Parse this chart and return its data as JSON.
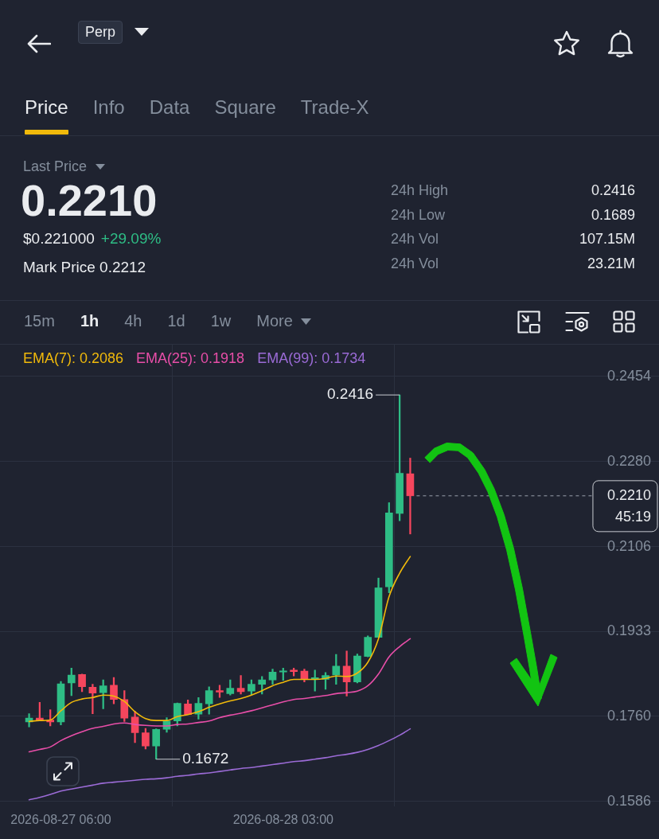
{
  "chart_data": {
    "type": "candlestick",
    "x": [
      "2026-08-27T03:00",
      "2026-08-27T04:00",
      "2026-08-27T05:00",
      "2026-08-27T06:00",
      "2026-08-27T07:00",
      "2026-08-27T08:00",
      "2026-08-27T09:00",
      "2026-08-27T10:00",
      "2026-08-27T11:00",
      "2026-08-27T12:00",
      "2026-08-27T13:00",
      "2026-08-27T14:00",
      "2026-08-27T15:00",
      "2026-08-27T16:00",
      "2026-08-27T17:00",
      "2026-08-27T18:00",
      "2026-08-27T19:00",
      "2026-08-27T20:00",
      "2026-08-27T21:00",
      "2026-08-27T22:00",
      "2026-08-27T23:00",
      "2026-08-28T00:00",
      "2026-08-28T01:00",
      "2026-08-28T02:00",
      "2026-08-28T03:00",
      "2026-08-28T04:00",
      "2026-08-28T05:00",
      "2026-08-28T06:00",
      "2026-08-28T07:00",
      "2026-08-28T08:00",
      "2026-08-28T09:00",
      "2026-08-28T10:00",
      "2026-08-28T11:00",
      "2026-08-28T12:00",
      "2026-08-28T13:00",
      "2026-08-28T14:00",
      "2026-08-28T15:00"
    ],
    "ohlc": [
      [
        0.1748,
        0.1765,
        0.1738,
        0.1756
      ],
      [
        0.1756,
        0.1788,
        0.175,
        0.1751
      ],
      [
        0.1752,
        0.1773,
        0.174,
        0.1748
      ],
      [
        0.1748,
        0.1831,
        0.1742,
        0.1826
      ],
      [
        0.1828,
        0.1858,
        0.1802,
        0.1844
      ],
      [
        0.1845,
        0.1846,
        0.181,
        0.182
      ],
      [
        0.1819,
        0.1825,
        0.1765,
        0.1807
      ],
      [
        0.1808,
        0.1834,
        0.1775,
        0.1822
      ],
      [
        0.1823,
        0.1839,
        0.1785,
        0.1794
      ],
      [
        0.1794,
        0.1812,
        0.1749,
        0.1756
      ],
      [
        0.1758,
        0.177,
        0.1706,
        0.1726
      ],
      [
        0.1726,
        0.1735,
        0.1693,
        0.1699
      ],
      [
        0.1699,
        0.1734,
        0.1672,
        0.1733
      ],
      [
        0.1733,
        0.1757,
        0.1727,
        0.175
      ],
      [
        0.175,
        0.1787,
        0.174,
        0.1786
      ],
      [
        0.1785,
        0.1793,
        0.1763,
        0.1763
      ],
      [
        0.1764,
        0.1798,
        0.1754,
        0.1786
      ],
      [
        0.1785,
        0.182,
        0.1764,
        0.1812
      ],
      [
        0.1812,
        0.1823,
        0.1798,
        0.1809
      ],
      [
        0.1806,
        0.1834,
        0.1803,
        0.1817
      ],
      [
        0.1817,
        0.1843,
        0.1805,
        0.181
      ],
      [
        0.1811,
        0.1834,
        0.1804,
        0.1825
      ],
      [
        0.1825,
        0.1841,
        0.1805,
        0.1834
      ],
      [
        0.1834,
        0.1856,
        0.1825,
        0.185
      ],
      [
        0.185,
        0.1858,
        0.1833,
        0.1852
      ],
      [
        0.1854,
        0.1858,
        0.1842,
        0.1851
      ],
      [
        0.1852,
        0.1856,
        0.183,
        0.1836
      ],
      [
        0.1836,
        0.1854,
        0.1811,
        0.1837
      ],
      [
        0.1835,
        0.1849,
        0.1815,
        0.1843
      ],
      [
        0.1844,
        0.1886,
        0.1825,
        0.1862
      ],
      [
        0.1862,
        0.1893,
        0.1801,
        0.183
      ],
      [
        0.183,
        0.1887,
        0.1828,
        0.1883
      ],
      [
        0.1882,
        0.1924,
        0.1881,
        0.1921
      ],
      [
        0.1921,
        0.2042,
        0.1921,
        0.2022
      ],
      [
        0.2024,
        0.2196,
        0.2012,
        0.2175
      ],
      [
        0.2174,
        0.2416,
        0.2159,
        0.2256
      ],
      [
        0.2255,
        0.2287,
        0.2132,
        0.221
      ]
    ],
    "colors": [
      "#2ebd85",
      "#f6465d",
      "#f6465d",
      "#2ebd85",
      "#2ebd85",
      "#f6465d",
      "#f6465d",
      "#2ebd85",
      "#f6465d",
      "#f6465d",
      "#f6465d",
      "#f6465d",
      "#2ebd85",
      "#2ebd85",
      "#2ebd85",
      "#f6465d",
      "#2ebd85",
      "#2ebd85",
      "#f6465d",
      "#2ebd85",
      "#f6465d",
      "#2ebd85",
      "#2ebd85",
      "#2ebd85",
      "#2ebd85",
      "#f6465d",
      "#f6465d",
      "#2ebd85",
      "#2ebd85",
      "#2ebd85",
      "#f6465d",
      "#2ebd85",
      "#2ebd85",
      "#2ebd85",
      "#2ebd85",
      "#2ebd85",
      "#f6465d"
    ],
    "series": [
      {
        "name": "EMA(7): 0.2086",
        "type": "line",
        "color": "#f0b90b",
        "values": [
          0.1749,
          0.1751,
          0.1752,
          0.1771,
          0.1788,
          0.1795,
          0.1798,
          0.1803,
          0.1801,
          0.179,
          0.1769,
          0.1755,
          0.1751,
          0.1751,
          0.1759,
          0.1763,
          0.1769,
          0.1778,
          0.1785,
          0.1791,
          0.1796,
          0.1803,
          0.1812,
          0.1822,
          0.1829,
          0.1835,
          0.1835,
          0.1835,
          0.1837,
          0.1842,
          0.1841,
          0.1848,
          0.187,
          0.1918,
          0.2004,
          0.2052,
          0.2086
        ]
      },
      {
        "name": "EMA(25): 0.1918",
        "type": "line",
        "color": "#e84ea8",
        "values": [
          0.1687,
          0.1692,
          0.1697,
          0.171,
          0.172,
          0.1728,
          0.1735,
          0.1739,
          0.1744,
          0.1746,
          0.1743,
          0.1741,
          0.174,
          0.174,
          0.1743,
          0.1744,
          0.1747,
          0.175,
          0.1757,
          0.1762,
          0.1766,
          0.1771,
          0.1777,
          0.1783,
          0.1789,
          0.1794,
          0.1796,
          0.1799,
          0.1802,
          0.1806,
          0.1808,
          0.1811,
          0.1822,
          0.1846,
          0.1881,
          0.1902,
          0.1918
        ]
      },
      {
        "name": "EMA(99): 0.1734",
        "type": "line",
        "color": "#9b6bd6",
        "values": [
          0.1589,
          0.1594,
          0.16,
          0.1607,
          0.1611,
          0.1615,
          0.1619,
          0.1623,
          0.1625,
          0.1627,
          0.1629,
          0.1631,
          0.1632,
          0.1634,
          0.1637,
          0.1639,
          0.1642,
          0.1644,
          0.1647,
          0.165,
          0.1653,
          0.1655,
          0.1658,
          0.1661,
          0.1664,
          0.1667,
          0.1669,
          0.1672,
          0.1675,
          0.1679,
          0.1682,
          0.1686,
          0.1692,
          0.17,
          0.171,
          0.1721,
          0.1734
        ]
      }
    ],
    "xlim": [
      "2026-08-27T00:15",
      "2026-08-29T14:30"
    ],
    "xticks": [
      {
        "value": "2026-08-27T06:00",
        "label": "2026-08-27 06:00"
      },
      {
        "value": "2026-08-28T03:00",
        "label": "2026-08-28 03:00"
      }
    ],
    "ylim": [
      0.1576,
      0.2519
    ],
    "yticks": [
      0.1586,
      {
        "value": 0.176,
        "label": "0.1760"
      },
      0.1933,
      0.2106,
      {
        "value": 0.228,
        "label": "0.2280"
      },
      0.2454
    ],
    "grid": true,
    "legend": "top left",
    "marker": "none",
    "annotations": [
      "Perp",
      "Price",
      "Info",
      "Data",
      "Square",
      "Trade-X",
      "Last Price",
      "0.2210",
      "$0.221000",
      "+29.09%",
      "Mark Price 0.2212",
      "24h High",
      "0.2416",
      "24h Low",
      "0.1689",
      "24h Vol",
      "107.15M",
      "24h Vol",
      "23.21M",
      "15m",
      "1h",
      "4h",
      "1d",
      "1w",
      "More",
      {
        "text": "0.2416",
        "x": "2026-08-28T14:00",
        "y": 0.2416
      },
      {
        "text": "0.1672",
        "x": "2026-08-27T15:00",
        "y": 0.1672
      }
    ],
    "ref_lines": [
      {
        "axis": "y",
        "value": 0.221,
        "label": "0.2210\n45:19",
        "line_style": "dashed"
      }
    ]
  }
}
